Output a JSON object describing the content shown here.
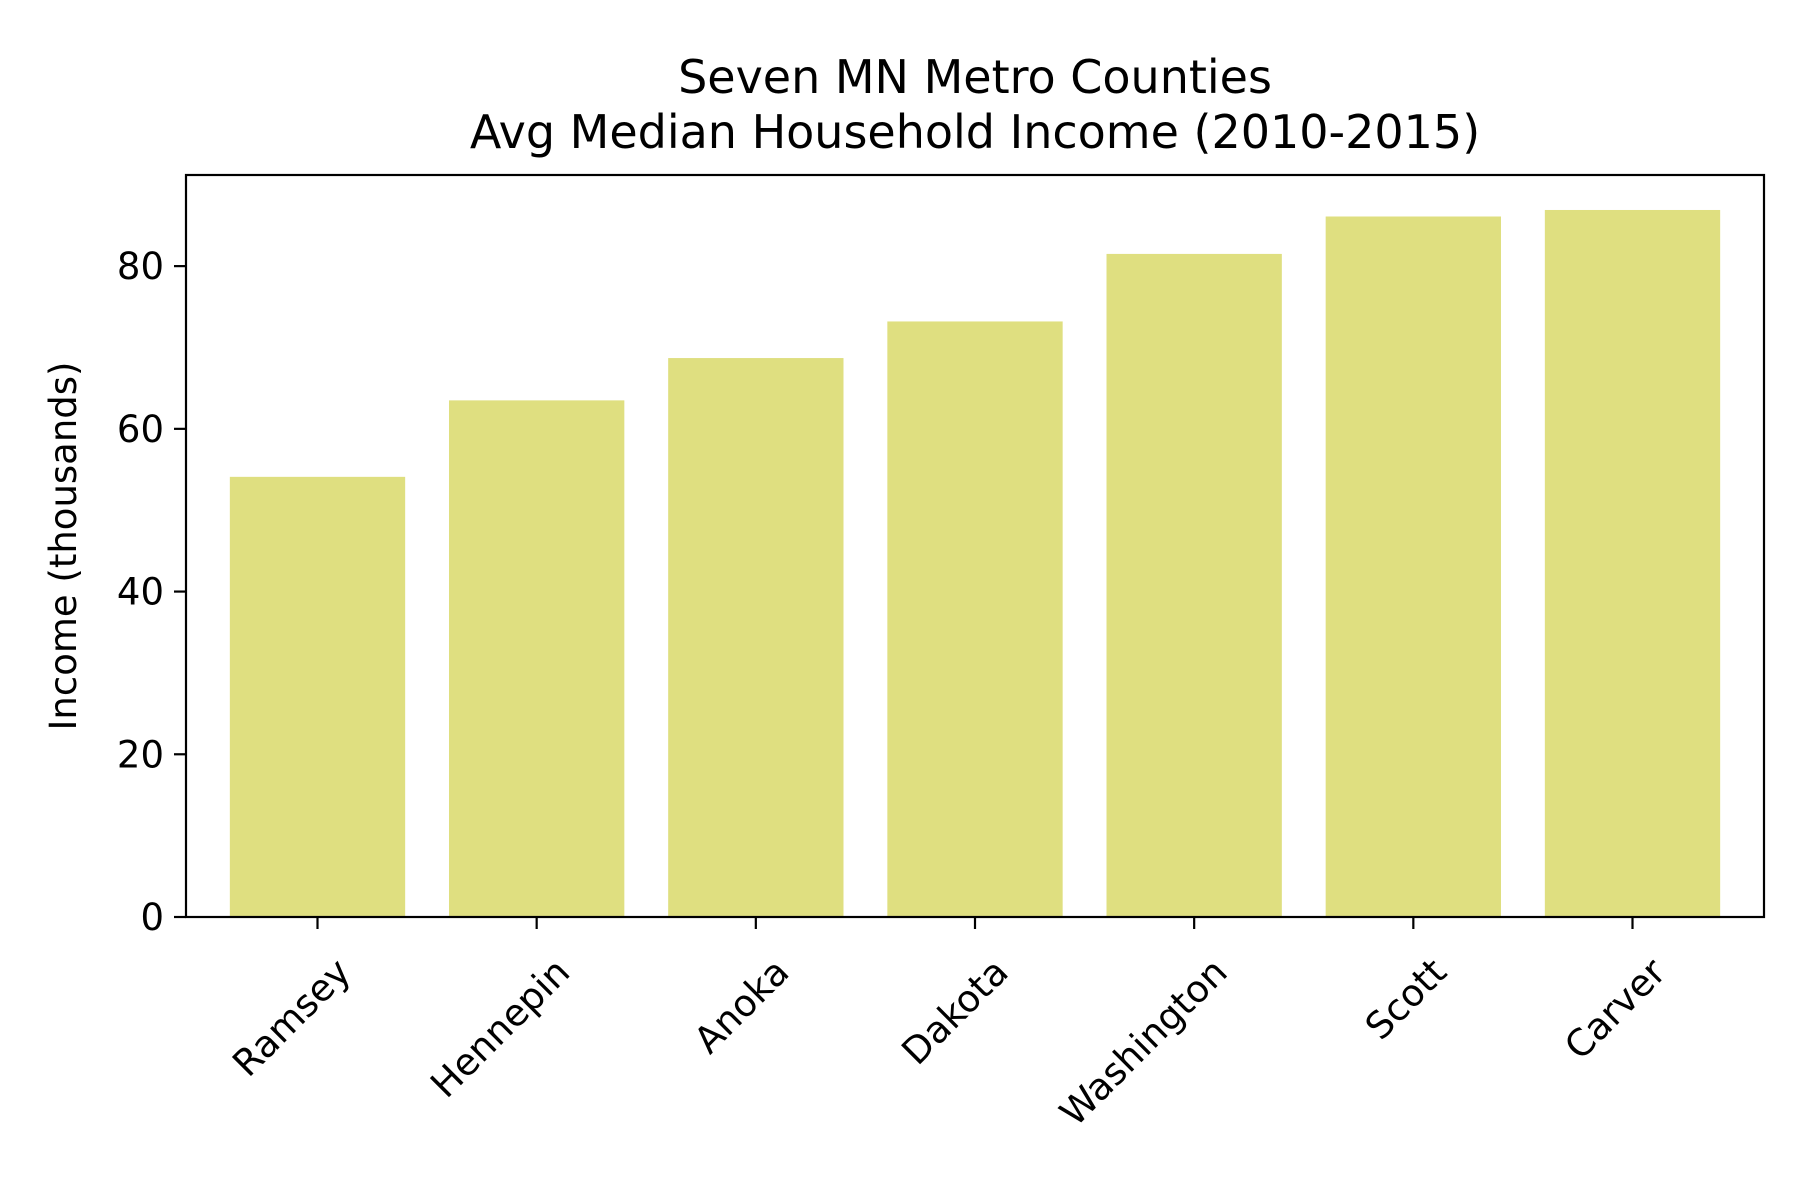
{
  "chart_data": {
    "type": "bar",
    "title_line1": "Seven MN Metro Counties",
    "title_line2": "Avg Median Household Income (2010-2015)",
    "xlabel": "",
    "ylabel": "Income (thousands)",
    "categories": [
      "Ramsey",
      "Hennepin",
      "Anoka",
      "Dakota",
      "Washington",
      "Scott",
      "Carver"
    ],
    "values": [
      54.1,
      63.5,
      68.7,
      73.2,
      81.5,
      86.1,
      86.9
    ],
    "yticks": [
      0,
      20,
      40,
      60,
      80
    ],
    "ylim": [
      0,
      91.2
    ],
    "bar_color": "#dfdf80",
    "grid": false,
    "legend": "none"
  }
}
